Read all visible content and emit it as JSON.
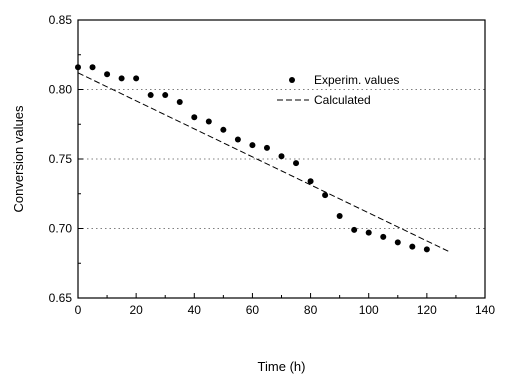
{
  "chart_data": {
    "type": "scatter",
    "xlabel": "Time (h)",
    "ylabel": "Conversion values",
    "xlim": [
      0,
      140
    ],
    "ylim": [
      0.65,
      0.85
    ],
    "xticks": [
      0,
      20,
      40,
      60,
      80,
      100,
      120,
      140
    ],
    "yticks": [
      0.65,
      0.7,
      0.75,
      0.8,
      0.85
    ],
    "ytick_labels": [
      "0.65",
      "0.70",
      "0.75",
      "0.80",
      "0.85"
    ],
    "grid": "horizontal dotted",
    "legend_position": "top-right",
    "series": [
      {
        "name": "Experim. values",
        "kind": "points",
        "color": "#000000",
        "x": [
          0,
          5,
          10,
          15,
          20,
          25,
          30,
          35,
          40,
          45,
          50,
          55,
          60,
          65,
          70,
          75,
          80,
          85,
          90,
          95,
          100,
          105,
          110,
          115,
          120
        ],
        "y": [
          0.816,
          0.816,
          0.811,
          0.808,
          0.808,
          0.796,
          0.796,
          0.791,
          0.78,
          0.777,
          0.771,
          0.764,
          0.76,
          0.758,
          0.752,
          0.747,
          0.734,
          0.724,
          0.709,
          0.699,
          0.697,
          0.694,
          0.69,
          0.687,
          0.685
        ]
      },
      {
        "name": "Calculated",
        "kind": "dashed-line",
        "color": "#000000",
        "x": [
          0,
          128
        ],
        "y": [
          0.812,
          0.683
        ]
      }
    ]
  }
}
